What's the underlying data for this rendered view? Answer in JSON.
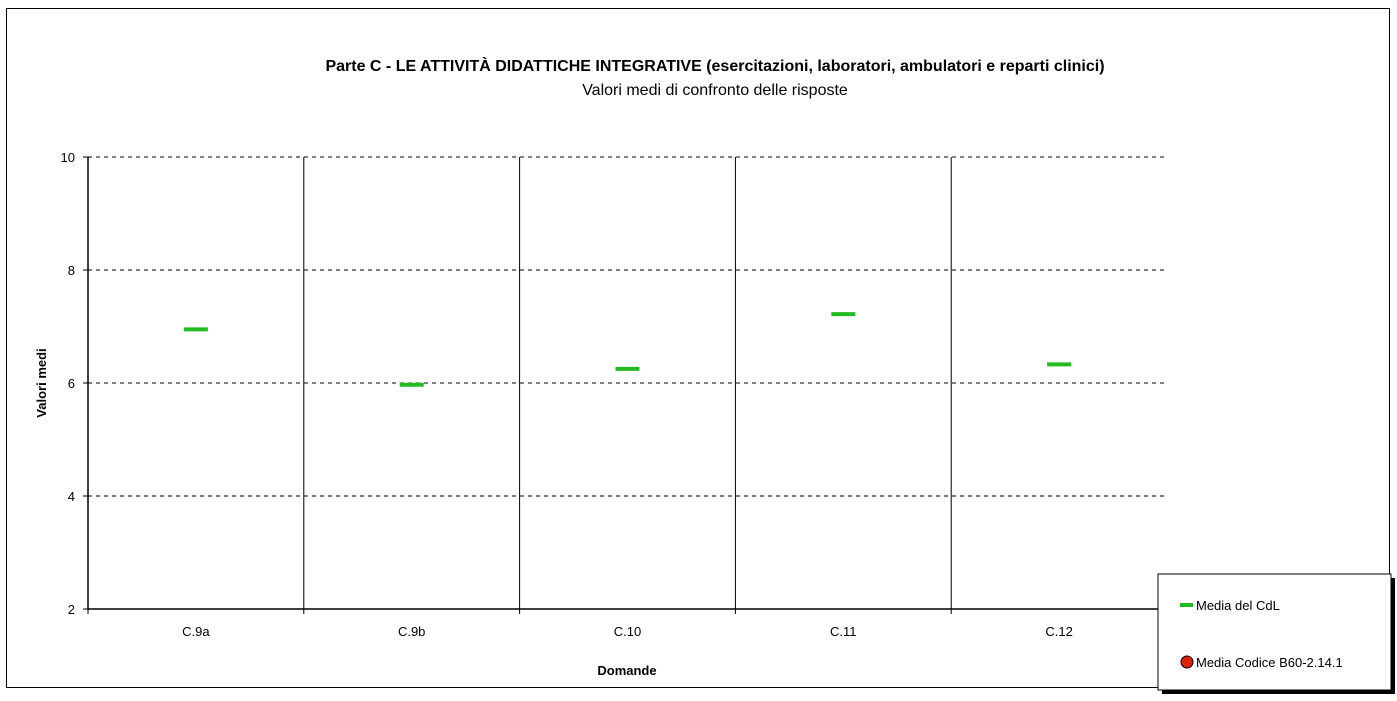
{
  "chart_data": {
    "type": "scatter",
    "title": "Parte C - LE ATTIVITÀ DIDATTICHE INTEGRATIVE (esercitazioni, laboratori, ambulatori e reparti clinici)",
    "subtitle": "Valori medi di confronto delle risposte",
    "xlabel": "Domande",
    "ylabel": "Valori medi",
    "categories": [
      "C.9a",
      "C.9b",
      "C.10",
      "C.11",
      "C.12"
    ],
    "ylim": [
      2,
      10
    ],
    "yticks": [
      2,
      4,
      6,
      8,
      10
    ],
    "grid": true,
    "legend_position": "bottom-right",
    "series": [
      {
        "name": "Media del CdL",
        "marker": "dash",
        "color": "#22bb22",
        "values": [
          6.95,
          5.97,
          6.25,
          7.22,
          6.33
        ]
      },
      {
        "name": "Media Codice B60-2.14.1",
        "marker": "circle",
        "color": "#dd2200",
        "values": []
      }
    ]
  }
}
